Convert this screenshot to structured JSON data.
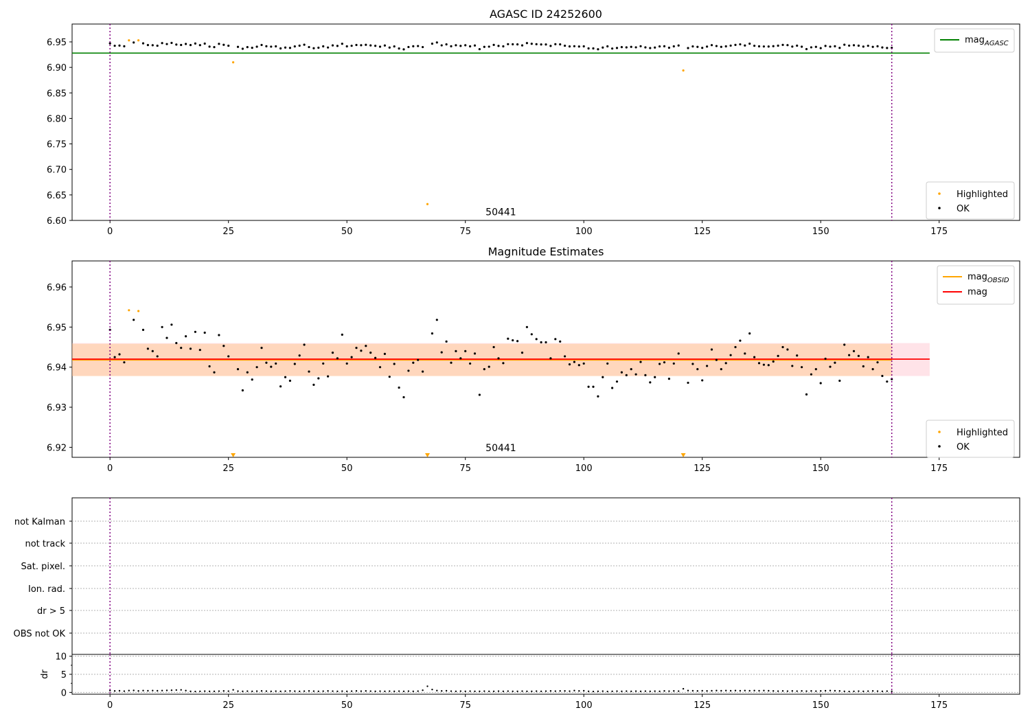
{
  "chart_data": [
    {
      "type": "scatter",
      "title": "AGASC ID 24252600",
      "xlim": [
        -8,
        192
      ],
      "ylim": [
        6.6,
        6.985
      ],
      "xticks": [
        0,
        25,
        50,
        75,
        100,
        125,
        150,
        175
      ],
      "yticks": [
        6.6,
        6.65,
        6.7,
        6.75,
        6.8,
        6.85,
        6.9,
        6.95
      ],
      "xtick_labels": [
        "0",
        "25",
        "50",
        "75",
        "100",
        "125",
        "150",
        "175"
      ],
      "ytick_labels": [
        "6.60",
        "6.65",
        "6.70",
        "6.75",
        "6.80",
        "6.85",
        "6.90",
        "6.95"
      ],
      "vlines": [
        0,
        165
      ],
      "hline": {
        "y": 6.928,
        "x0": -8,
        "x1": 173,
        "color": "#008000"
      },
      "annotation": {
        "text": "50441",
        "x": 82.5,
        "y": 6.61
      },
      "series": [
        {
          "name": "Highlighted",
          "color": "#ffa500",
          "points": [
            [
              4,
              6.953
            ],
            [
              6,
              6.953
            ],
            [
              26,
              6.91
            ],
            [
              67,
              6.632
            ],
            [
              121,
              6.894
            ]
          ]
        },
        {
          "name": "OK",
          "color": "#000000"
        }
      ],
      "legend_lines": [
        {
          "label_main": "mag",
          "label_sub": "AGASC",
          "color": "#008000"
        }
      ],
      "legend_points": [
        "Highlighted",
        "OK"
      ]
    },
    {
      "type": "scatter",
      "title": "Magnitude Estimates",
      "xlim": [
        -8,
        192
      ],
      "ylim": [
        6.9175,
        6.9665
      ],
      "xticks": [
        0,
        25,
        50,
        75,
        100,
        125,
        150,
        175
      ],
      "yticks": [
        6.92,
        6.93,
        6.94,
        6.95,
        6.96
      ],
      "xtick_labels": [
        "0",
        "25",
        "50",
        "75",
        "100",
        "125",
        "150",
        "175"
      ],
      "ytick_labels": [
        "6.92",
        "6.93",
        "6.94",
        "6.95",
        "6.96"
      ],
      "vlines": [
        0,
        165
      ],
      "mag_line": {
        "y": 6.942,
        "x0": -8,
        "x1": 173,
        "color": "#ff0000"
      },
      "band_outer": {
        "y0": 6.9378,
        "y1": 6.946,
        "color": "#ffc0cb"
      },
      "band_inner": {
        "y0": 6.9378,
        "y1": 6.9458,
        "color": "#ffa500"
      },
      "annotation": {
        "text": "50441",
        "x": 82.5,
        "y": 6.919
      },
      "highlighted_points": [
        [
          4,
          6.9542
        ],
        [
          6,
          6.954
        ]
      ],
      "highlighted_markers_below": [
        26,
        67,
        121
      ],
      "ok_points": [
        [
          0,
          6.9493
        ],
        [
          1,
          6.9425
        ],
        [
          2,
          6.9432
        ],
        [
          3,
          6.9412
        ],
        [
          5,
          6.9518
        ],
        [
          7,
          6.9493
        ],
        [
          8,
          6.9446
        ],
        [
          9,
          6.944
        ],
        [
          10,
          6.9427
        ],
        [
          11,
          6.95
        ],
        [
          12,
          6.9473
        ],
        [
          13,
          6.9506
        ],
        [
          14,
          6.946
        ],
        [
          15,
          6.9448
        ],
        [
          16,
          6.9477
        ],
        [
          17,
          6.9446
        ],
        [
          18,
          6.9488
        ],
        [
          19,
          6.9443
        ],
        [
          20,
          6.9486
        ],
        [
          21,
          6.9402
        ],
        [
          22,
          6.9387
        ],
        [
          23,
          6.948
        ],
        [
          24,
          6.9453
        ],
        [
          25,
          6.9427
        ],
        [
          27,
          6.9395
        ],
        [
          28,
          6.9342
        ],
        [
          29,
          6.9387
        ],
        [
          30,
          6.9369
        ],
        [
          31,
          6.94
        ],
        [
          32,
          6.9448
        ],
        [
          33,
          6.9411
        ],
        [
          34,
          6.9401
        ],
        [
          35,
          6.9409
        ],
        [
          36,
          6.9352
        ],
        [
          37,
          6.9375
        ],
        [
          38,
          6.9366
        ],
        [
          39,
          6.9408
        ],
        [
          40,
          6.9429
        ],
        [
          41,
          6.9456
        ],
        [
          42,
          6.9389
        ],
        [
          43,
          6.9356
        ],
        [
          44,
          6.9372
        ],
        [
          45,
          6.9409
        ],
        [
          46,
          6.9377
        ],
        [
          47,
          6.9436
        ],
        [
          48,
          6.9422
        ],
        [
          49,
          6.9481
        ],
        [
          50,
          6.9409
        ],
        [
          51,
          6.9425
        ],
        [
          52,
          6.9448
        ],
        [
          53,
          6.9441
        ],
        [
          54,
          6.9453
        ],
        [
          55,
          6.9436
        ],
        [
          56,
          6.9423
        ],
        [
          57,
          6.94
        ],
        [
          58,
          6.9433
        ],
        [
          59,
          6.9376
        ],
        [
          60,
          6.9408
        ],
        [
          61,
          6.9349
        ],
        [
          62,
          6.9325
        ],
        [
          63,
          6.9391
        ],
        [
          64,
          6.9411
        ],
        [
          65,
          6.9418
        ],
        [
          66,
          6.9389
        ],
        [
          68,
          6.9484
        ],
        [
          69,
          6.9518
        ],
        [
          70,
          6.9437
        ],
        [
          71,
          6.9464
        ],
        [
          72,
          6.9411
        ],
        [
          73,
          6.944
        ],
        [
          74,
          6.9422
        ],
        [
          75,
          6.944
        ],
        [
          76,
          6.9409
        ],
        [
          77,
          6.9434
        ],
        [
          78,
          6.9331
        ],
        [
          79,
          6.9395
        ],
        [
          80,
          6.9401
        ],
        [
          81,
          6.945
        ],
        [
          82,
          6.9422
        ],
        [
          83,
          6.941
        ],
        [
          84,
          6.9471
        ],
        [
          85,
          6.9467
        ],
        [
          86,
          6.9465
        ],
        [
          87,
          6.9436
        ],
        [
          88,
          6.95
        ],
        [
          89,
          6.9482
        ],
        [
          90,
          6.947
        ],
        [
          91,
          6.9462
        ],
        [
          92,
          6.9462
        ],
        [
          93,
          6.9422
        ],
        [
          94,
          6.947
        ],
        [
          95,
          6.9464
        ],
        [
          96,
          6.9427
        ],
        [
          97,
          6.9407
        ],
        [
          98,
          6.9413
        ],
        [
          99,
          6.9405
        ],
        [
          100,
          6.9409
        ],
        [
          101,
          6.9351
        ],
        [
          102,
          6.9351
        ],
        [
          103,
          6.9327
        ],
        [
          104,
          6.9375
        ],
        [
          105,
          6.9409
        ],
        [
          106,
          6.9348
        ],
        [
          107,
          6.9364
        ],
        [
          108,
          6.9387
        ],
        [
          109,
          6.938
        ],
        [
          110,
          6.9395
        ],
        [
          111,
          6.9382
        ],
        [
          112,
          6.9413
        ],
        [
          113,
          6.938
        ],
        [
          114,
          6.9362
        ],
        [
          115,
          6.9375
        ],
        [
          116,
          6.9408
        ],
        [
          117,
          6.9412
        ],
        [
          118,
          6.9371
        ],
        [
          119,
          6.9409
        ],
        [
          120,
          6.9434
        ],
        [
          122,
          6.9361
        ],
        [
          123,
          6.9408
        ],
        [
          124,
          6.9395
        ],
        [
          125,
          6.9367
        ],
        [
          126,
          6.9403
        ],
        [
          127,
          6.9444
        ],
        [
          128,
          6.9418
        ],
        [
          129,
          6.9395
        ],
        [
          130,
          6.941
        ],
        [
          131,
          6.943
        ],
        [
          132,
          6.945
        ],
        [
          133,
          6.9466
        ],
        [
          134,
          6.9434
        ],
        [
          135,
          6.9484
        ],
        [
          136,
          6.9425
        ],
        [
          137,
          6.941
        ],
        [
          138,
          6.9406
        ],
        [
          139,
          6.9405
        ],
        [
          140,
          6.9414
        ],
        [
          141,
          6.9428
        ],
        [
          142,
          6.945
        ],
        [
          143,
          6.9444
        ],
        [
          144,
          6.9403
        ],
        [
          145,
          6.9429
        ],
        [
          146,
          6.94
        ],
        [
          147,
          6.9332
        ],
        [
          148,
          6.9382
        ],
        [
          149,
          6.9395
        ],
        [
          150,
          6.936
        ],
        [
          151,
          6.9421
        ],
        [
          152,
          6.9401
        ],
        [
          153,
          6.9411
        ],
        [
          154,
          6.9366
        ],
        [
          155,
          6.9456
        ],
        [
          156,
          6.943
        ],
        [
          157,
          6.944
        ],
        [
          158,
          6.9428
        ],
        [
          159,
          6.9402
        ],
        [
          160,
          6.9425
        ],
        [
          161,
          6.9395
        ],
        [
          162,
          6.9412
        ],
        [
          163,
          6.9378
        ],
        [
          164,
          6.9364
        ],
        [
          165,
          6.937
        ]
      ],
      "legend_lines": [
        {
          "label_main": "mag",
          "label_sub": "OBSID",
          "color": "#ffa500"
        },
        {
          "label_main": "mag",
          "label_sub": "",
          "color": "#ff0000"
        }
      ],
      "legend_points": [
        "Highlighted",
        "OK"
      ]
    },
    {
      "type": "scatter",
      "ylabels": [
        "not Kalman",
        "not track",
        "Sat. pixel.",
        "Ion. rad.",
        "dr > 5",
        "OBS not OK"
      ],
      "vlines": [
        0,
        165
      ]
    },
    {
      "type": "line",
      "ylabel": "dr",
      "xlim": [
        -8,
        192
      ],
      "ylim": [
        -0.5,
        10.5
      ],
      "xticks": [
        0,
        25,
        50,
        75,
        100,
        125,
        150,
        175
      ],
      "yticks": [
        0,
        5,
        10
      ],
      "xtick_labels": [
        "0",
        "25",
        "50",
        "75",
        "100",
        "125",
        "150",
        "175"
      ],
      "ytick_labels": [
        "0",
        "5",
        "10"
      ],
      "vlines": [
        0,
        165
      ],
      "values": [
        0.5,
        0.4,
        0.45,
        0.35,
        0.5,
        0.55,
        0.4,
        0.5,
        0.45,
        0.5,
        0.45,
        0.5,
        0.55,
        0.6,
        0.65,
        0.7,
        0.5,
        0.3,
        0.25,
        0.3,
        0.35,
        0.3,
        0.3,
        0.35,
        0.4,
        0.35,
        0.7,
        0.35,
        0.3,
        0.35,
        0.3,
        0.35,
        0.4,
        0.35,
        0.3,
        0.35,
        0.3,
        0.35,
        0.4,
        0.35,
        0.3,
        0.35,
        0.4,
        0.35,
        0.3,
        0.35,
        0.4,
        0.35,
        0.3,
        0.35,
        0.3,
        0.35,
        0.4,
        0.35,
        0.4,
        0.35,
        0.3,
        0.35,
        0.3,
        0.35,
        0.3,
        0.35,
        0.3,
        0.35,
        0.3,
        0.35,
        0.6,
        1.7,
        0.8,
        0.5,
        0.4,
        0.45,
        0.35,
        0.3,
        0.35,
        0.3,
        0.35,
        0.3,
        0.3,
        0.35,
        0.3,
        0.3,
        0.35,
        0.3,
        0.35,
        0.3,
        0.3,
        0.35,
        0.3,
        0.3,
        0.35,
        0.3,
        0.35,
        0.4,
        0.35,
        0.4,
        0.4,
        0.35,
        0.5,
        0.4,
        0.45,
        0.3,
        0.25,
        0.3,
        0.35,
        0.25,
        0.3,
        0.35,
        0.3,
        0.35,
        0.3,
        0.35,
        0.3,
        0.35,
        0.3,
        0.35,
        0.3,
        0.4,
        0.35,
        0.4,
        0.35,
        1.0,
        0.5,
        0.45,
        0.4,
        0.45,
        0.4,
        0.45,
        0.5,
        0.45,
        0.5,
        0.45,
        0.5,
        0.45,
        0.5,
        0.45,
        0.5,
        0.45,
        0.5,
        0.45,
        0.4,
        0.35,
        0.4,
        0.35,
        0.4,
        0.35,
        0.4,
        0.35,
        0.4,
        0.35,
        0.4,
        0.45,
        0.5,
        0.45,
        0.4,
        0.3,
        0.25,
        0.3,
        0.35,
        0.3,
        0.35,
        0.4,
        0.35,
        0.3,
        0.35,
        0.3
      ]
    }
  ]
}
